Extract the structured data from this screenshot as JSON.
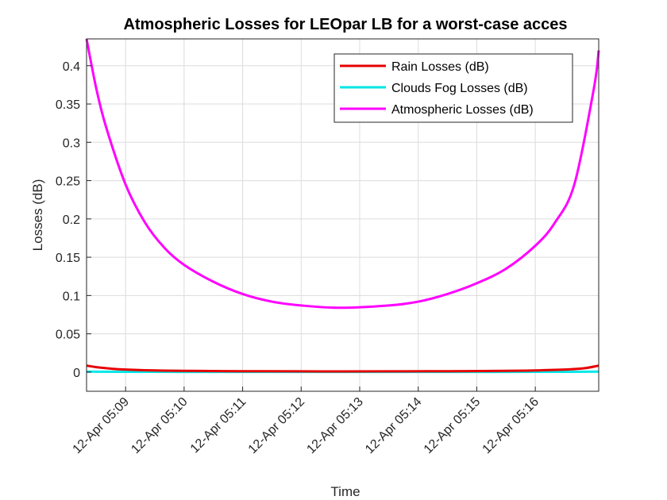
{
  "chart_data": {
    "type": "line",
    "title": "Atmospheric Losses for LEOpar LB for a worst-case acces",
    "xlabel": "Time",
    "ylabel": "Losses (dB)",
    "x_unit": "12-Apr time (mm:ss after 05:00)",
    "xlim": [
      "05:08:20",
      "05:17:05"
    ],
    "ylim": [
      -0.025,
      0.435
    ],
    "x_ticks": [
      "12-Apr 05:09",
      "12-Apr 05:10",
      "12-Apr 05:11",
      "12-Apr 05:12",
      "12-Apr 05:13",
      "12-Apr 05:14",
      "12-Apr 05:15",
      "12-Apr 05:16"
    ],
    "y_ticks": [
      "0",
      "0.05",
      "0.1",
      "0.15",
      "0.2",
      "0.25",
      "0.3",
      "0.35",
      "0.4"
    ],
    "grid": true,
    "legend_position": "top-right",
    "series": [
      {
        "name": "Rain Losses (dB)",
        "color": "#e60000",
        "x": [
          "05:08:20",
          "05:08:30",
          "05:08:45",
          "05:09:00",
          "05:09:30",
          "05:10:00",
          "05:11:00",
          "05:12:00",
          "05:12:40",
          "05:13:30",
          "05:14:30",
          "05:15:30",
          "05:16:00",
          "05:16:30",
          "05:16:50",
          "05:17:05"
        ],
        "y": [
          0.0085,
          0.0065,
          0.0045,
          0.0033,
          0.0022,
          0.0017,
          0.0012,
          0.001,
          0.0009,
          0.001,
          0.0012,
          0.0017,
          0.0022,
          0.0033,
          0.005,
          0.0085
        ]
      },
      {
        "name": "Clouds Fog Losses (dB)",
        "color": "#00e6e6",
        "x": [
          "05:08:20",
          "05:09:00",
          "05:10:00",
          "05:11:00",
          "05:12:00",
          "05:12:40",
          "05:13:30",
          "05:14:30",
          "05:15:30",
          "05:16:30",
          "05:17:05"
        ],
        "y": [
          0.0006,
          0.0004,
          0.0003,
          0.0002,
          0.0002,
          0.0002,
          0.0002,
          0.0002,
          0.0003,
          0.0004,
          0.0006
        ]
      },
      {
        "name": "Atmospheric Losses (dB)",
        "color": "#ff00ff",
        "x": [
          "05:08:20",
          "05:08:30",
          "05:08:40",
          "05:09:00",
          "05:09:20",
          "05:09:40",
          "05:10:00",
          "05:10:30",
          "05:11:00",
          "05:11:30",
          "05:12:00",
          "05:12:40",
          "05:13:30",
          "05:14:00",
          "05:14:30",
          "05:15:00",
          "05:15:30",
          "05:16:00",
          "05:16:20",
          "05:16:40",
          "05:17:00",
          "05:17:05"
        ],
        "y": [
          0.435,
          0.37,
          0.32,
          0.245,
          0.195,
          0.162,
          0.14,
          0.118,
          0.102,
          0.092,
          0.087,
          0.084,
          0.087,
          0.092,
          0.102,
          0.116,
          0.135,
          0.165,
          0.195,
          0.245,
          0.37,
          0.42
        ]
      }
    ]
  }
}
